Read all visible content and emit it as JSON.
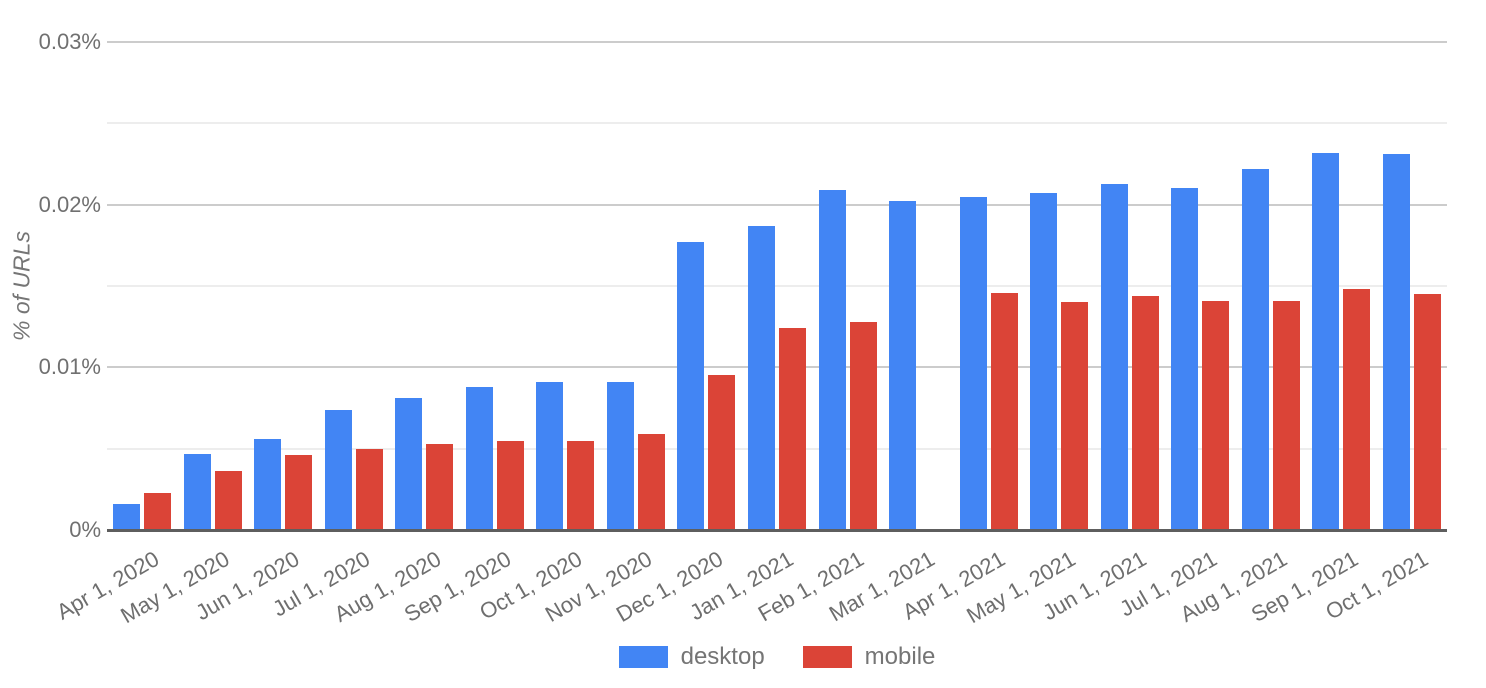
{
  "chart_data": {
    "type": "bar",
    "title": "",
    "xlabel": "",
    "ylabel": "% of URLs",
    "unit": "percent",
    "ylim": [
      0,
      0.03
    ],
    "grid": "horizontal",
    "minor_grid_interval": 0.005,
    "legend_position": "bottom",
    "categories": [
      "Apr 1, 2020",
      "May 1, 2020",
      "Jun 1, 2020",
      "Jul 1, 2020",
      "Aug 1, 2020",
      "Sep 1, 2020",
      "Oct 1, 2020",
      "Nov 1, 2020",
      "Dec 1, 2020",
      "Jan 1, 2021",
      "Feb 1, 2021",
      "Mar 1, 2021",
      "Apr 1, 2021",
      "May 1, 2021",
      "Jun 1, 2021",
      "Jul 1, 2021",
      "Aug 1, 2021",
      "Sep 1, 2021",
      "Oct 1, 2021"
    ],
    "series": [
      {
        "name": "desktop",
        "color": "#4285f4",
        "values": [
          0.0016,
          0.0047,
          0.0056,
          0.0074,
          0.0081,
          0.0088,
          0.0091,
          0.0091,
          0.0177,
          0.0187,
          0.0209,
          0.0202,
          0.0205,
          0.0207,
          0.0213,
          0.021,
          0.0222,
          0.0232,
          0.0231
        ]
      },
      {
        "name": "mobile",
        "color": "#db4437",
        "values": [
          0.0023,
          0.0036,
          0.0046,
          0.005,
          0.0053,
          0.0055,
          0.0055,
          0.0059,
          0.0095,
          0.0124,
          0.0128,
          null,
          0.0146,
          0.014,
          0.0144,
          0.0141,
          0.0141,
          0.0148,
          0.0145
        ]
      }
    ],
    "yticks": [
      {
        "value": 0.0,
        "label": "0%"
      },
      {
        "value": 0.01,
        "label": "0.01%"
      },
      {
        "value": 0.02,
        "label": "0.02%"
      },
      {
        "value": 0.03,
        "label": "0.03%"
      }
    ]
  }
}
